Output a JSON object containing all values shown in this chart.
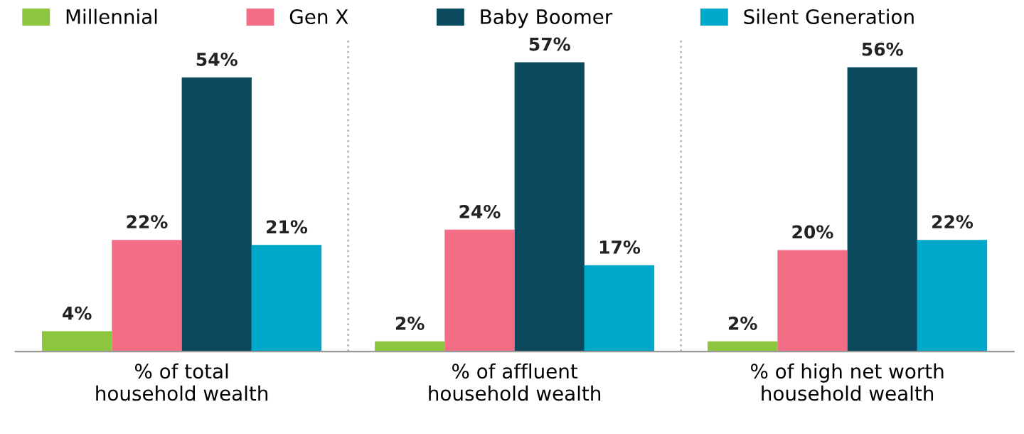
{
  "chart_data": {
    "type": "bar",
    "categories": [
      "% of total\nhousehold wealth",
      "% of affluent\nhousehold wealth",
      "% of high net worth\nhousehold wealth"
    ],
    "series": [
      {
        "name": "Millennial",
        "color": "#8cc63e",
        "values": [
          4,
          2,
          2
        ],
        "value_labels": [
          "4%",
          "2%",
          "2%"
        ]
      },
      {
        "name": "Gen X",
        "color": "#f46d86",
        "values": [
          22,
          24,
          20
        ],
        "value_labels": [
          "22%",
          "24%",
          "20%"
        ]
      },
      {
        "name": "Baby Boomer",
        "color": "#0b4a5e",
        "values": [
          54,
          57,
          56
        ],
        "value_labels": [
          "54%",
          "57%",
          "56%"
        ]
      },
      {
        "name": "Silent Generation",
        "color": "#00a9c9",
        "values": [
          21,
          17,
          22
        ],
        "value_labels": [
          "21%",
          "17%",
          "22%"
        ]
      }
    ],
    "legend": "top",
    "grid": false
  }
}
